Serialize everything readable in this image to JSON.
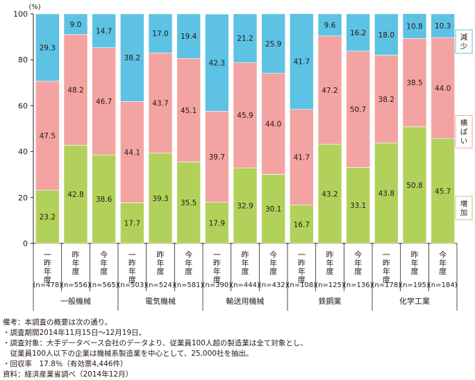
{
  "chart_data": {
    "type": "bar",
    "stacked": true,
    "y_unit": "(%)",
    "ylim": [
      0,
      100
    ],
    "y_ticks": [
      0,
      20,
      40,
      60,
      80,
      100
    ],
    "grid": false,
    "legend_position": "right",
    "colors": {
      "増加": "#b2d15b",
      "横ばい": "#f3a3a2",
      "減少": "#5dc2e3"
    },
    "series": [
      {
        "name": "増加",
        "values": [
          23.2,
          42.8,
          38.6,
          17.7,
          39.3,
          35.5,
          17.9,
          32.9,
          30.1,
          16.7,
          43.2,
          33.1,
          43.8,
          50.8,
          45.7
        ]
      },
      {
        "name": "横ばい",
        "values": [
          47.5,
          48.2,
          46.7,
          44.1,
          43.7,
          45.1,
          39.7,
          45.9,
          44.0,
          41.7,
          47.2,
          50.7,
          38.2,
          38.5,
          44.0
        ]
      },
      {
        "name": "減少",
        "values": [
          29.3,
          9.0,
          14.7,
          38.2,
          17.0,
          19.4,
          42.3,
          21.2,
          25.9,
          41.7,
          9.6,
          16.2,
          18.0,
          10.8,
          10.3
        ]
      }
    ],
    "bars": [
      {
        "period": "一昨年度",
        "n": "(n=478)"
      },
      {
        "period": "昨年度",
        "n": "(n=556)"
      },
      {
        "period": "今年度",
        "n": "(n=565)"
      },
      {
        "period": "一昨年度",
        "n": "(n=503)"
      },
      {
        "period": "昨年度",
        "n": "(n=524)"
      },
      {
        "period": "今年度",
        "n": "(n=581)"
      },
      {
        "period": "一昨年度",
        "n": "(n=390)"
      },
      {
        "period": "昨年度",
        "n": "(n=444)"
      },
      {
        "period": "今年度",
        "n": "(n=432)"
      },
      {
        "period": "一昨年度",
        "n": "(n=108)"
      },
      {
        "period": "昨年度",
        "n": "(n=125)"
      },
      {
        "period": "今年度",
        "n": "(n=136)"
      },
      {
        "period": "一昨年度",
        "n": "(n=178)"
      },
      {
        "period": "昨年度",
        "n": "(n=195)"
      },
      {
        "period": "今年度",
        "n": "(n=184)"
      }
    ],
    "groups": [
      "一般機械",
      "電気機械",
      "輸送用機械",
      "鉄鋼業",
      "化学工業"
    ]
  },
  "notes": [
    "備考：本調査の概要は次の通り。",
    "・調査期間2014年11月15日～12月19日。",
    "・調査対象：大手データベース会社のデータより、従業員100人超の製造業は全て対象とし、",
    "　従業員100人以下の企業は機械系製造業を中心として、25,000社を抽出。",
    "・回収率　17.8％（有効票4,446件）",
    "資料：経済産業省調べ（2014年12月）"
  ]
}
